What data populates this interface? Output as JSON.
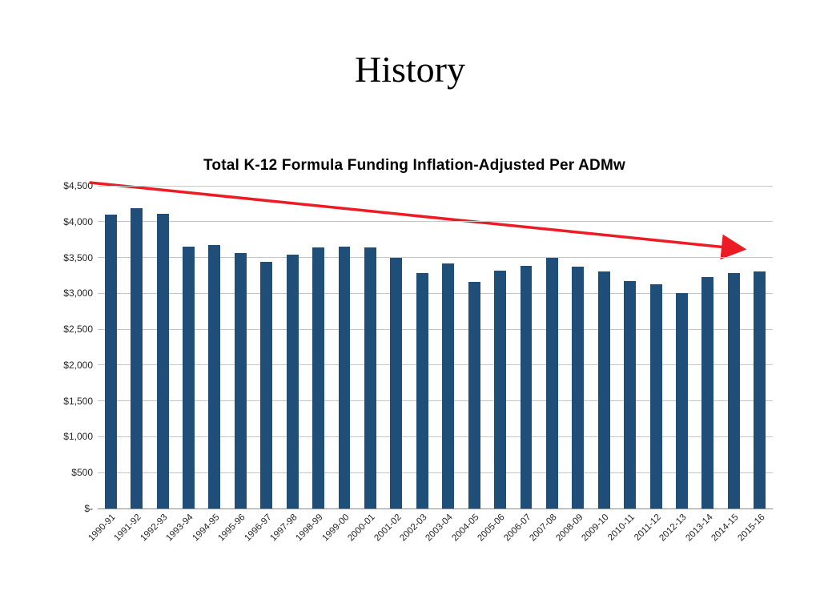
{
  "slide": {
    "title": "History"
  },
  "chart_data": {
    "type": "bar",
    "title": "Total K-12 Formula Funding Inflation-Adjusted Per ADMw",
    "categories": [
      "1990-91",
      "1991-92",
      "1992-93",
      "1993-94",
      "1994-95",
      "1995-96",
      "1996-97",
      "1997-98",
      "1998-99",
      "1999-00",
      "2000-01",
      "2001-02",
      "2002-03",
      "2003-04",
      "2004-05",
      "2005-06",
      "2006-07",
      "2007-08",
      "2008-09",
      "2009-10",
      "2010-11",
      "2011-12",
      "2012-13",
      "2013-14",
      "2014-15",
      "2015-16"
    ],
    "values": [
      4100,
      4190,
      4110,
      3650,
      3670,
      3560,
      3440,
      3540,
      3640,
      3650,
      3640,
      3500,
      3280,
      3420,
      3160,
      3320,
      3380,
      3500,
      3370,
      3300,
      3170,
      3130,
      3000,
      3230,
      3280,
      3300
    ],
    "xlabel": "",
    "ylabel": "",
    "ylim": [
      0,
      4500
    ],
    "ytick_step": 500,
    "ytick_labels": [
      "$-",
      "$500",
      "$1,000",
      "$1,500",
      "$2,000",
      "$2,500",
      "$3,000",
      "$3,500",
      "$4,000",
      "$4,500"
    ],
    "grid": true,
    "legend": false,
    "bar_color": "#1f4e79",
    "gridline_color": "#c6c6c6",
    "trend_arrow": {
      "color": "#ed1c24",
      "stroke_width": 3.5,
      "from_x_frac": -0.012,
      "from_value": 4545,
      "to_x_frac": 0.953,
      "to_value": 3620
    }
  }
}
